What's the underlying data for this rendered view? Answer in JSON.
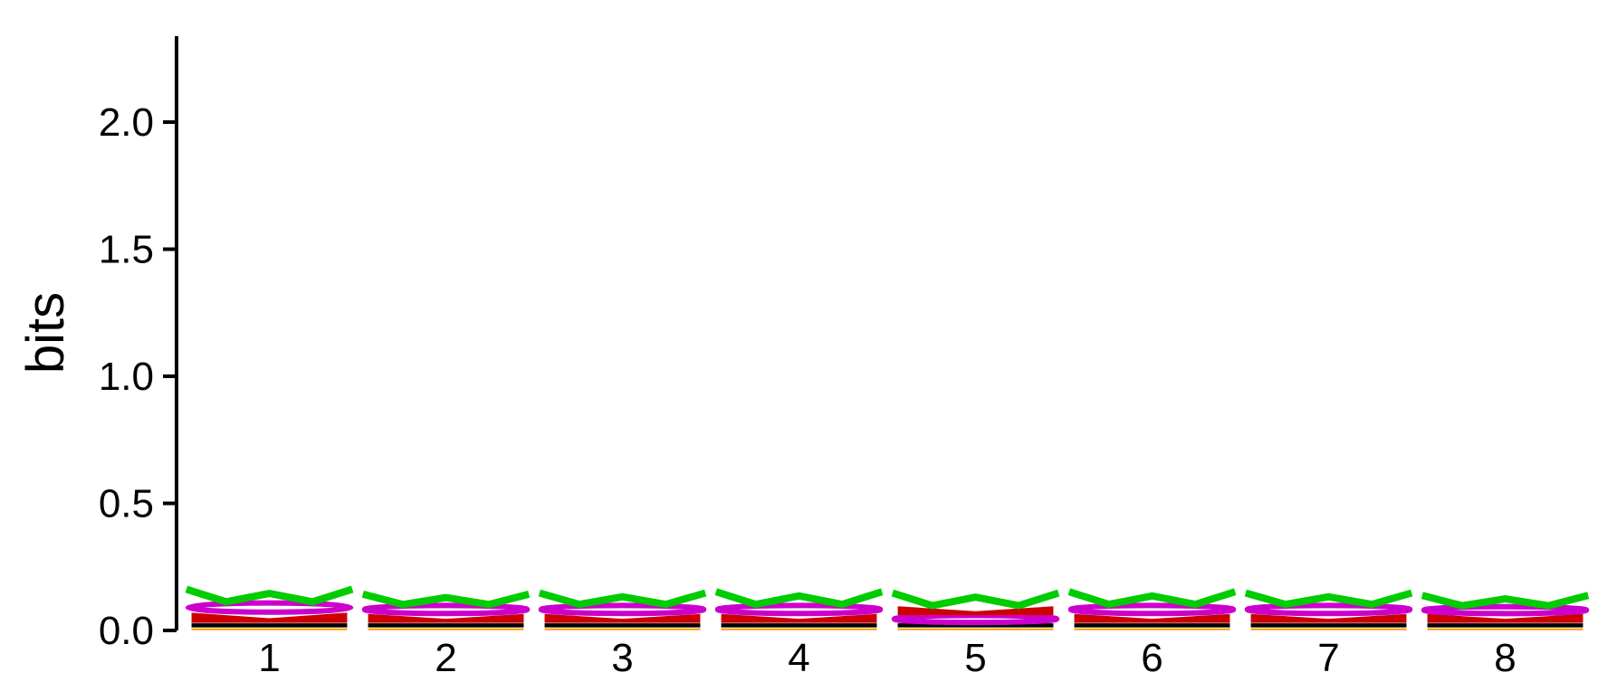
{
  "chart_data": {
    "type": "sequence-logo",
    "ylabel": "bits",
    "ylim": [
      0,
      2.3
    ],
    "y_ticks": [
      "0.0",
      "0.5",
      "1.0",
      "1.5",
      "2.0"
    ],
    "y_tick_values": [
      0,
      0.5,
      1.0,
      1.5,
      2.0
    ],
    "positions": [
      "1",
      "2",
      "3",
      "4",
      "5",
      "6",
      "7",
      "8"
    ],
    "letter_colors": {
      "W": "#00cc00",
      "O": "#cc00cc",
      "M": "#cc0000",
      "S": "#000000",
      "U": "#ff9900"
    },
    "stacks": [
      [
        [
          "U",
          0.01
        ],
        [
          "S",
          0.02
        ],
        [
          "M",
          0.04
        ],
        [
          "O",
          0.04
        ],
        [
          "W",
          0.055
        ]
      ],
      [
        [
          "U",
          0.01
        ],
        [
          "S",
          0.02
        ],
        [
          "M",
          0.035
        ],
        [
          "O",
          0.035
        ],
        [
          "W",
          0.045
        ]
      ],
      [
        [
          "U",
          0.01
        ],
        [
          "S",
          0.02
        ],
        [
          "M",
          0.035
        ],
        [
          "O",
          0.035
        ],
        [
          "W",
          0.05
        ]
      ],
      [
        [
          "U",
          0.01
        ],
        [
          "S",
          0.02
        ],
        [
          "M",
          0.035
        ],
        [
          "O",
          0.035
        ],
        [
          "W",
          0.055
        ]
      ],
      [
        [
          "U",
          0.01
        ],
        [
          "S",
          0.02
        ],
        [
          "O",
          0.03
        ],
        [
          "M",
          0.035
        ],
        [
          "W",
          0.055
        ]
      ],
      [
        [
          "U",
          0.01
        ],
        [
          "S",
          0.02
        ],
        [
          "M",
          0.035
        ],
        [
          "O",
          0.035
        ],
        [
          "W",
          0.055
        ]
      ],
      [
        [
          "U",
          0.01
        ],
        [
          "S",
          0.02
        ],
        [
          "M",
          0.035
        ],
        [
          "O",
          0.035
        ],
        [
          "W",
          0.05
        ]
      ],
      [
        [
          "U",
          0.01
        ],
        [
          "S",
          0.02
        ],
        [
          "M",
          0.035
        ],
        [
          "O",
          0.03
        ],
        [
          "W",
          0.045
        ]
      ]
    ]
  }
}
